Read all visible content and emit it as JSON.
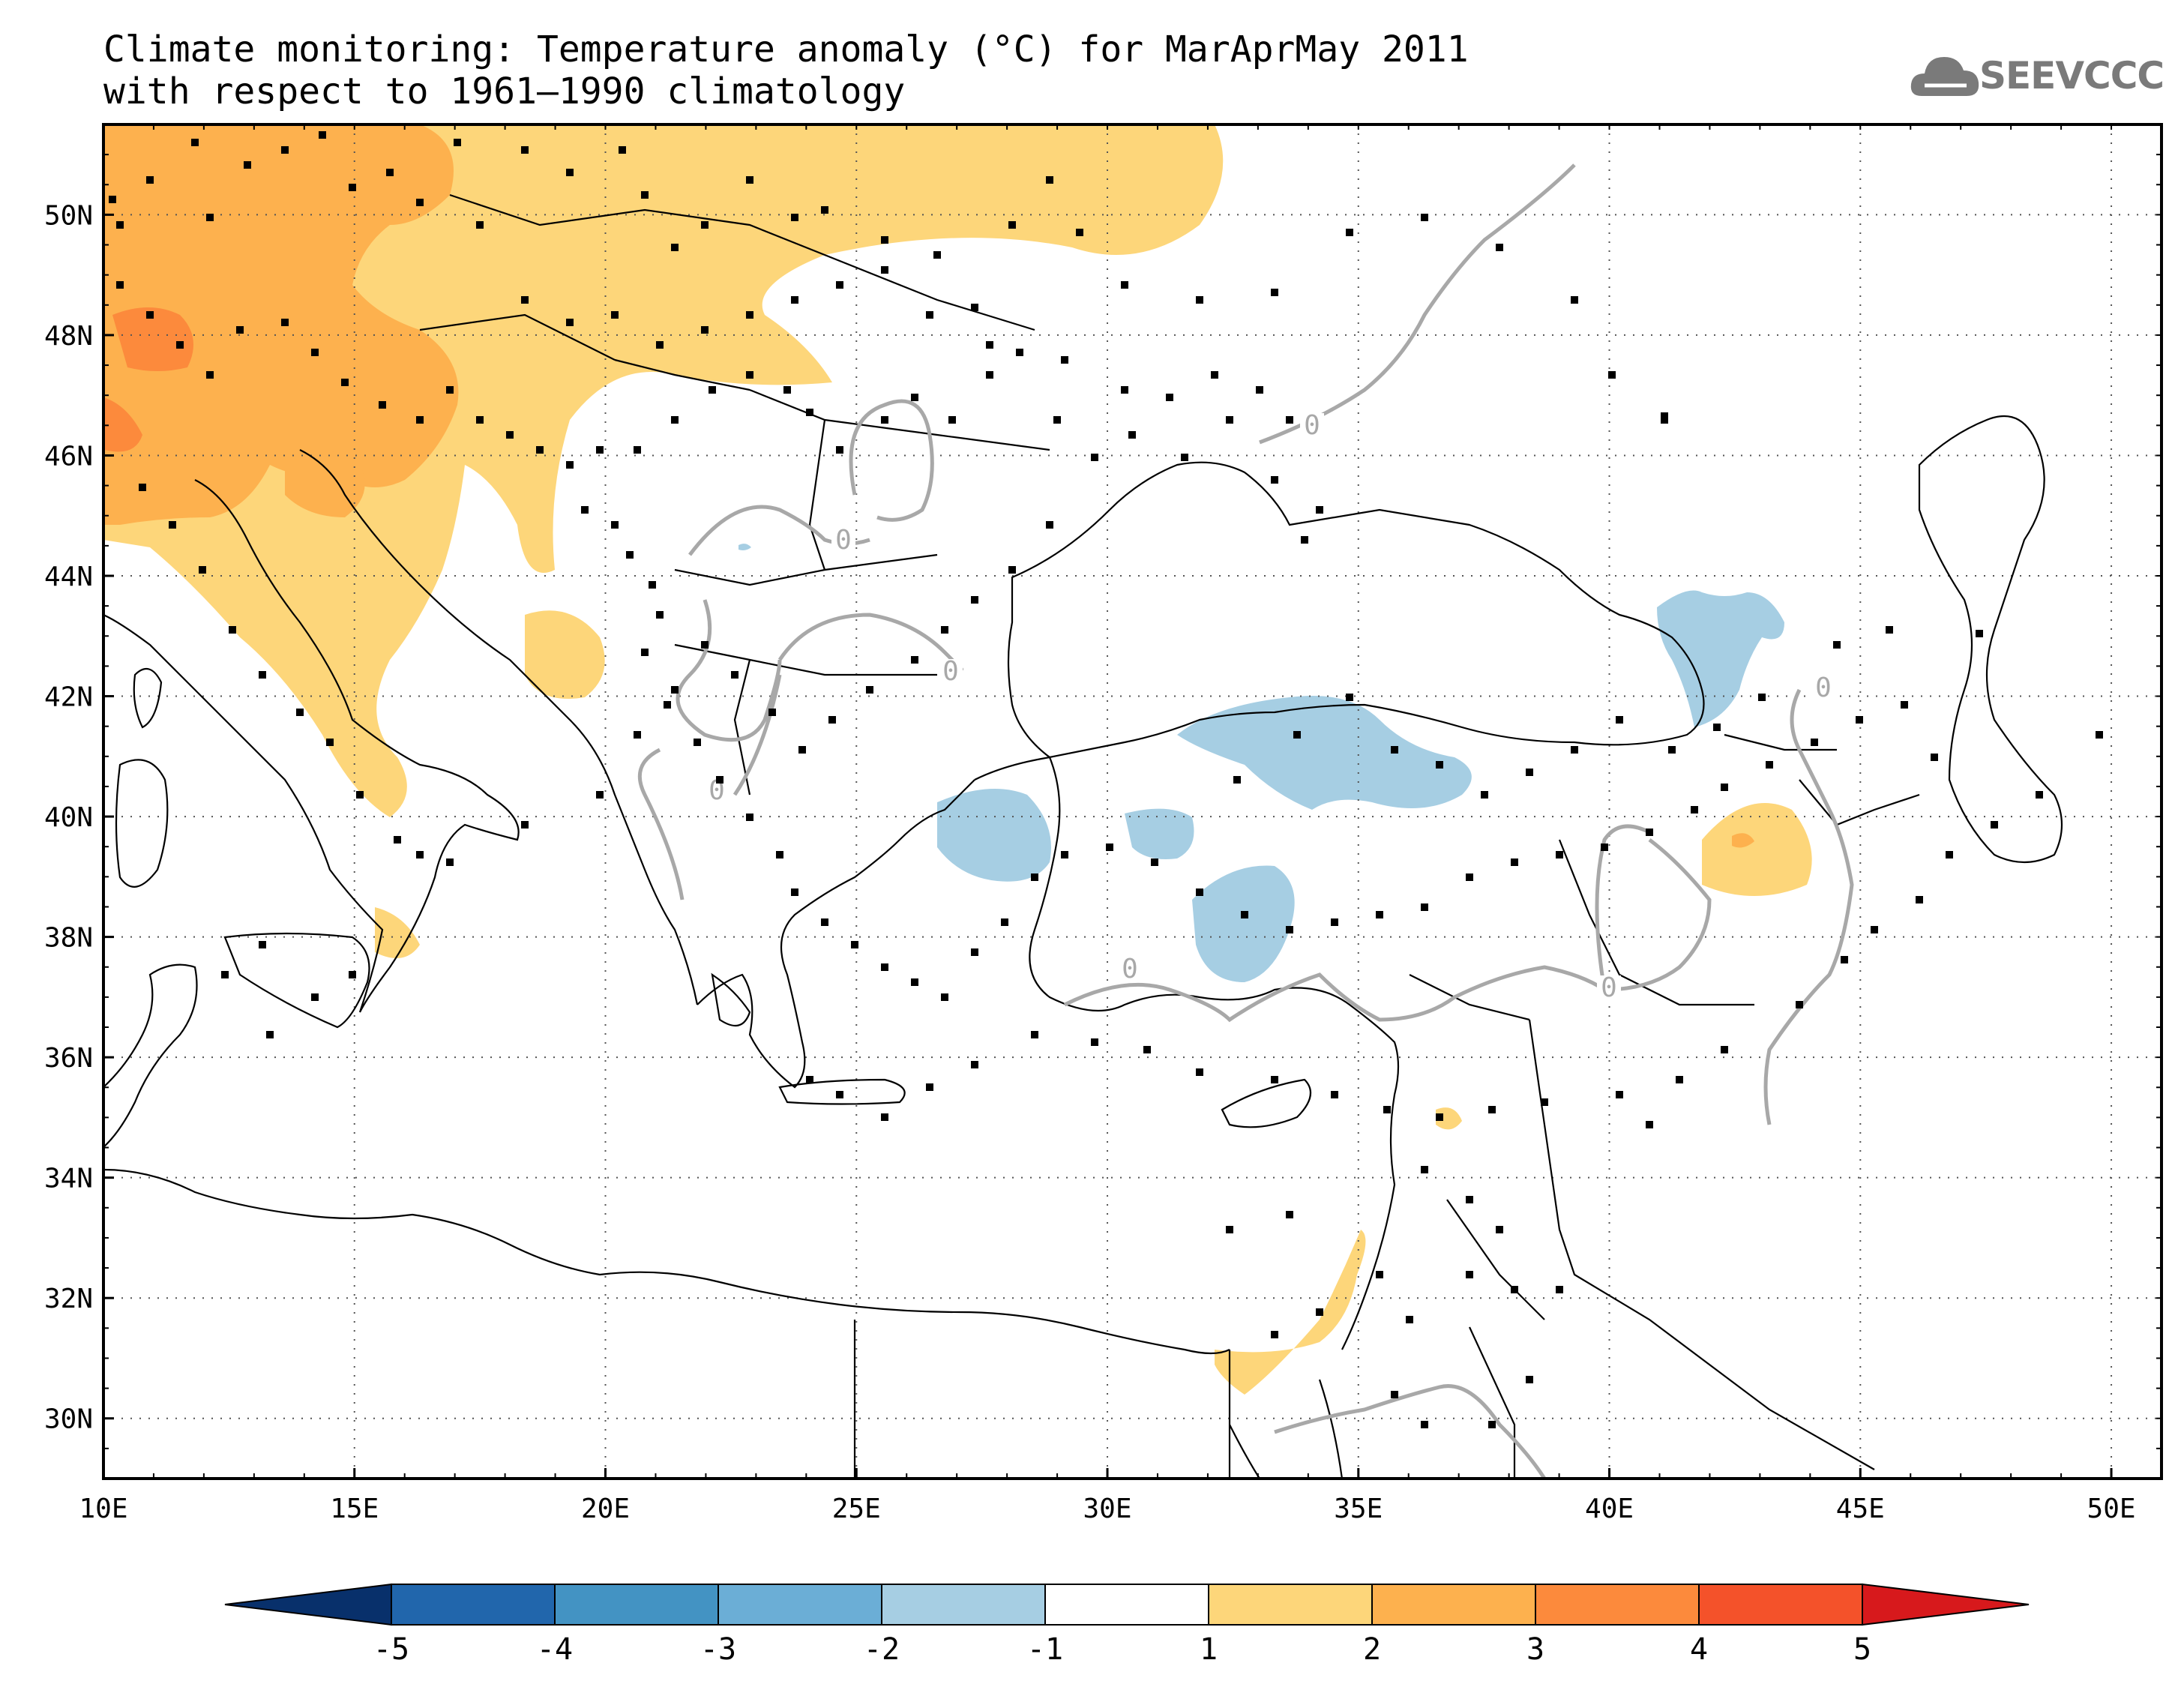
{
  "title": {
    "line1": "Climate monitoring: Temperature anomaly (°C) for MarAprMay 2011",
    "line2": "with respect to 1961–1990 climatology"
  },
  "logo": {
    "text": "SEEVCCC",
    "icon": "cloud-icon",
    "color": "#7a7a7a"
  },
  "map": {
    "lon_range": [
      10,
      51
    ],
    "lat_range": [
      29,
      51.5
    ],
    "lon_ticks": [
      {
        "value": 10,
        "label": "10E"
      },
      {
        "value": 15,
        "label": "15E"
      },
      {
        "value": 20,
        "label": "20E"
      },
      {
        "value": 25,
        "label": "25E"
      },
      {
        "value": 30,
        "label": "30E"
      },
      {
        "value": 35,
        "label": "35E"
      },
      {
        "value": 40,
        "label": "40E"
      },
      {
        "value": 45,
        "label": "45E"
      },
      {
        "value": 50,
        "label": "50E"
      }
    ],
    "lat_ticks": [
      {
        "value": 30,
        "label": "30N"
      },
      {
        "value": 32,
        "label": "32N"
      },
      {
        "value": 34,
        "label": "34N"
      },
      {
        "value": 36,
        "label": "36N"
      },
      {
        "value": 38,
        "label": "38N"
      },
      {
        "value": 40,
        "label": "40N"
      },
      {
        "value": 42,
        "label": "42N"
      },
      {
        "value": 44,
        "label": "44N"
      },
      {
        "value": 46,
        "label": "46N"
      },
      {
        "value": 48,
        "label": "48N"
      },
      {
        "value": 50,
        "label": "50N"
      }
    ],
    "contour_label": "0",
    "colors": {
      "coast": "#000000",
      "contour": "#a8a8a8",
      "grid": "#555555",
      "station": "#000000"
    }
  },
  "colorbar": {
    "boundaries": [
      "-5",
      "-4",
      "-3",
      "-2",
      "-1",
      "1",
      "2",
      "3",
      "4",
      "5"
    ],
    "colors": [
      "#08306b",
      "#2166ac",
      "#4393c3",
      "#6baed6",
      "#a6cee3",
      "#ffffff",
      "#fdd67a",
      "#fdb14e",
      "#fc8a3c",
      "#f4522a",
      "#d7191c"
    ]
  }
}
